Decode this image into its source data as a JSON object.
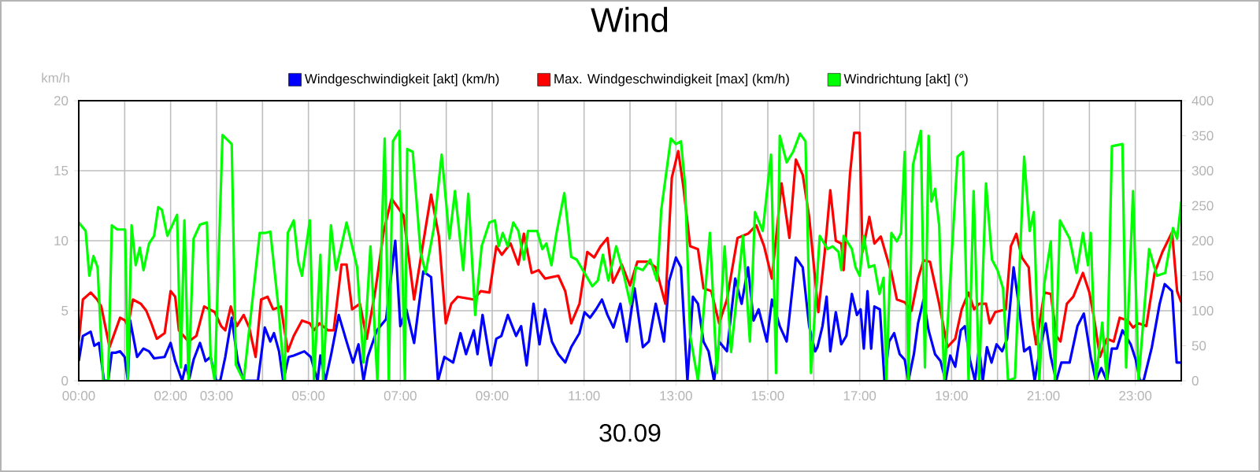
{
  "chart_data": {
    "type": "line",
    "title": "Wind",
    "xlabel": "30.09",
    "ylabel": "km/h",
    "xlim": [
      0,
      24
    ],
    "ylim": [
      0,
      20
    ],
    "y2lim": [
      0,
      400
    ],
    "xticks": [
      {
        "value": 0,
        "label": "00:00"
      },
      {
        "value": 1,
        "label": null
      },
      {
        "value": 2,
        "label": "02:00"
      },
      {
        "value": 3,
        "label": "03:00"
      },
      {
        "value": 4,
        "label": null
      },
      {
        "value": 5,
        "label": "05:00"
      },
      {
        "value": 6,
        "label": null
      },
      {
        "value": 7,
        "label": "07:00"
      },
      {
        "value": 8,
        "label": null
      },
      {
        "value": 9,
        "label": "09:00"
      },
      {
        "value": 10,
        "label": null
      },
      {
        "value": 11,
        "label": "11:00"
      },
      {
        "value": 12,
        "label": null
      },
      {
        "value": 13,
        "label": "13:00"
      },
      {
        "value": 14,
        "label": null
      },
      {
        "value": 15,
        "label": "15:00"
      },
      {
        "value": 16,
        "label": null
      },
      {
        "value": 17,
        "label": "17:00"
      },
      {
        "value": 18,
        "label": null
      },
      {
        "value": 19,
        "label": "19:00"
      },
      {
        "value": 20,
        "label": null
      },
      {
        "value": 21,
        "label": "21:00"
      },
      {
        "value": 22,
        "label": null
      },
      {
        "value": 23,
        "label": "23:00"
      },
      {
        "value": 24,
        "label": null
      }
    ],
    "yticks": [
      0,
      5,
      10,
      15,
      20
    ],
    "y2ticks": [
      0,
      50,
      100,
      150,
      200,
      250,
      300,
      350,
      400
    ],
    "grid": true,
    "legend": "top",
    "series": [
      {
        "name": "Windgeschwindigkeit [akt] (km/h)",
        "color": "#0000ff",
        "x": [
          0,
          0.09,
          0.26,
          0.34,
          0.44,
          0.55,
          0.64,
          0.72,
          0.8,
          0.9,
          1.0,
          1.07,
          1.12,
          1.27,
          1.41,
          1.53,
          1.64,
          1.87,
          2.0,
          2.1,
          2.25,
          2.33,
          2.41,
          2.5,
          2.64,
          2.76,
          2.87,
          2.99,
          3.08,
          3.19,
          3.33,
          3.46,
          3.59,
          3.9,
          4.05,
          4.17,
          4.25,
          4.36,
          4.45,
          4.57,
          4.68,
          4.91,
          5.05,
          5.2,
          5.26,
          5.37,
          5.49,
          5.66,
          5.83,
          5.97,
          6.09,
          6.2,
          6.29,
          6.49,
          6.69,
          6.89,
          7.0,
          7.13,
          7.3,
          7.5,
          7.67,
          7.82,
          7.96,
          8.15,
          8.31,
          8.43,
          8.6,
          8.68,
          8.79,
          8.97,
          9.09,
          9.2,
          9.34,
          9.52,
          9.63,
          9.75,
          9.9,
          10.03,
          10.15,
          10.3,
          10.44,
          10.59,
          10.72,
          10.9,
          11.01,
          11.13,
          11.26,
          11.39,
          11.51,
          11.64,
          11.79,
          11.93,
          12.1,
          12.28,
          12.41,
          12.56,
          12.74,
          12.85,
          13.0,
          13.11,
          13.25,
          13.37,
          13.48,
          13.6,
          13.71,
          13.83,
          13.94,
          14.11,
          14.29,
          14.43,
          14.57,
          14.69,
          14.8,
          14.98,
          15.09,
          15.26,
          15.41,
          15.61,
          15.76,
          15.9,
          16.03,
          16.08,
          16.19,
          16.28,
          16.36,
          16.48,
          16.6,
          16.71,
          16.83,
          16.94,
          17.02,
          17.09,
          17.17,
          17.25,
          17.32,
          17.44,
          17.54,
          17.64,
          17.75,
          17.87,
          17.98,
          18.06,
          18.18,
          18.27,
          18.39,
          18.5,
          18.64,
          18.76,
          18.87,
          18.97,
          19.08,
          19.2,
          19.29,
          19.4,
          19.51,
          19.6,
          19.68,
          19.77,
          19.87,
          19.98,
          20.1,
          20.21,
          20.35,
          20.46,
          20.58,
          20.7,
          20.81,
          20.93,
          21.05,
          21.16,
          21.28,
          21.39,
          21.57,
          21.74,
          21.88,
          22.03,
          22.14,
          22.26,
          22.38,
          22.49,
          22.6,
          22.72,
          22.9,
          23.01,
          23.1,
          23.18,
          23.36,
          23.53,
          23.64,
          23.8,
          23.9,
          24.0
        ],
        "values": [
          1.4,
          3.2,
          3.5,
          2.5,
          2.7,
          0,
          0,
          2.0,
          2.0,
          2.1,
          1.7,
          0,
          4.3,
          1.7,
          2.3,
          2.1,
          1.6,
          1.7,
          2.7,
          1.4,
          0,
          1.1,
          0.2,
          1.5,
          2.7,
          1.4,
          1.7,
          0,
          0,
          1.7,
          4.5,
          1.4,
          0,
          0,
          3.8,
          2.8,
          3.4,
          2.1,
          0,
          1.7,
          1.8,
          2.1,
          1.7,
          0,
          1.8,
          0,
          1.8,
          4.7,
          2.8,
          1.3,
          2.6,
          0,
          1.7,
          3.6,
          4.4,
          10.0,
          3.9,
          5.1,
          2.7,
          7.8,
          7.4,
          0,
          1.7,
          1.3,
          3.4,
          1.9,
          3.6,
          1.9,
          4.7,
          1.1,
          3.0,
          3.2,
          4.7,
          3.2,
          3.9,
          1.1,
          5.5,
          2.6,
          5.1,
          2.8,
          1.9,
          1.3,
          2.4,
          3.4,
          4.9,
          4.5,
          5.1,
          5.8,
          4.7,
          3.8,
          5.5,
          2.8,
          6.6,
          2.4,
          2.8,
          5.5,
          2.8,
          7.1,
          8.8,
          8.1,
          0,
          6.0,
          5.5,
          2.8,
          2.1,
          0,
          2.8,
          2.1,
          7.3,
          5.5,
          8.1,
          4.3,
          5.1,
          2.8,
          5.8,
          3.9,
          2.8,
          8.8,
          8.1,
          3.9,
          2.1,
          2.4,
          3.9,
          6.0,
          2.1,
          4.9,
          2.6,
          3.2,
          6.2,
          4.7,
          5.1,
          2.3,
          6.4,
          2.3,
          5.3,
          5.1,
          0,
          2.8,
          3.4,
          1.9,
          1.5,
          0,
          1.9,
          4.1,
          5.8,
          3.6,
          1.9,
          1.4,
          0,
          1.8,
          1.0,
          3.6,
          3.9,
          1.5,
          0,
          2.4,
          0,
          2.4,
          1.3,
          2.6,
          2.1,
          3.0,
          8.1,
          5.5,
          2.1,
          2.4,
          0,
          2.4,
          4.1,
          1.7,
          0,
          1.3,
          1.3,
          3.9,
          4.8,
          1.7,
          0,
          0.9,
          0,
          2.3,
          2.3,
          3.6,
          2.6,
          1.5,
          0,
          0,
          2.4,
          5.5,
          6.9,
          6.4,
          1.3,
          1.3
        ]
      },
      {
        "name": "Max. Windgeschwindigkeit [max] (km/h)",
        "color": "#ff0000",
        "x": [
          0,
          0.09,
          0.26,
          0.4,
          0.49,
          0.67,
          0.9,
          1.01,
          1.07,
          1.18,
          1.35,
          1.47,
          1.58,
          1.7,
          1.87,
          2.0,
          2.1,
          2.18,
          2.39,
          2.56,
          2.73,
          2.96,
          3.1,
          3.19,
          3.31,
          3.44,
          3.59,
          3.71,
          3.85,
          3.97,
          4.11,
          4.23,
          4.4,
          4.55,
          4.68,
          4.86,
          5.03,
          5.12,
          5.24,
          5.43,
          5.55,
          5.72,
          5.83,
          5.95,
          6.12,
          6.27,
          6.46,
          6.64,
          6.81,
          7.07,
          7.3,
          7.55,
          7.67,
          7.84,
          7.99,
          8.11,
          8.25,
          8.6,
          8.75,
          8.94,
          9.09,
          9.21,
          9.4,
          9.57,
          9.69,
          9.86,
          10.01,
          10.15,
          10.44,
          10.59,
          10.72,
          10.9,
          11.07,
          11.22,
          11.36,
          11.51,
          11.63,
          11.82,
          12.0,
          12.16,
          12.39,
          12.56,
          12.77,
          12.91,
          13.05,
          13.16,
          13.31,
          13.48,
          13.6,
          13.77,
          13.94,
          14.11,
          14.34,
          14.57,
          14.75,
          14.92,
          15.09,
          15.3,
          15.47,
          15.61,
          15.76,
          15.9,
          16.1,
          16.24,
          16.36,
          16.48,
          16.6,
          16.65,
          16.79,
          16.88,
          17.0,
          17.06,
          17.21,
          17.32,
          17.46,
          17.69,
          17.81,
          17.98,
          18.13,
          18.27,
          18.39,
          18.53,
          18.73,
          18.91,
          19.08,
          19.22,
          19.37,
          19.49,
          19.6,
          19.75,
          19.83,
          19.95,
          20.18,
          20.29,
          20.41,
          20.53,
          20.68,
          20.76,
          20.84,
          21.02,
          21.16,
          21.28,
          21.37,
          21.51,
          21.65,
          21.86,
          22.0,
          22.09,
          22.23,
          22.38,
          22.53,
          22.66,
          22.84,
          22.95,
          23.07,
          23.24,
          23.42,
          23.59,
          23.8,
          23.91,
          24.0
        ],
        "values": [
          2.8,
          5.8,
          6.3,
          5.8,
          5.3,
          2.4,
          4.5,
          4.3,
          3.9,
          5.8,
          5.5,
          5.0,
          4.1,
          3.0,
          3.4,
          6.4,
          6.0,
          3.6,
          2.8,
          3.2,
          5.3,
          4.9,
          3.9,
          3.6,
          5.3,
          3.9,
          4.7,
          3.8,
          1.7,
          5.8,
          6.0,
          5.1,
          5.3,
          2.1,
          3.2,
          4.3,
          4.1,
          3.6,
          4.1,
          3.6,
          3.6,
          8.3,
          8.3,
          5.1,
          5.5,
          3.0,
          6.5,
          10.7,
          13.0,
          11.8,
          5.8,
          10.9,
          13.3,
          10.3,
          4.1,
          5.5,
          6.0,
          5.8,
          6.4,
          6.3,
          9.6,
          9.0,
          9.8,
          8.3,
          10.5,
          7.7,
          7.9,
          7.3,
          7.5,
          6.4,
          4.1,
          5.5,
          9.2,
          8.8,
          9.6,
          10.2,
          7.0,
          8.3,
          6.8,
          8.5,
          8.5,
          8.1,
          5.5,
          14.5,
          16.4,
          13.9,
          9.6,
          9.4,
          6.6,
          6.4,
          4.1,
          5.8,
          10.2,
          10.5,
          11.1,
          9.6,
          7.3,
          14.1,
          10.2,
          15.8,
          14.7,
          11.7,
          4.9,
          9.2,
          13.6,
          10.0,
          9.8,
          7.9,
          14.8,
          17.7,
          17.7,
          9.2,
          11.7,
          9.8,
          10.3,
          7.7,
          5.8,
          5.6,
          5.0,
          7.3,
          8.6,
          8.5,
          5.5,
          2.4,
          3.0,
          5.1,
          6.3,
          5.1,
          5.5,
          5.5,
          4.1,
          4.9,
          5.1,
          9.6,
          10.5,
          8.8,
          8.1,
          4.3,
          2.6,
          6.3,
          6.2,
          3.2,
          2.8,
          5.5,
          6.0,
          7.7,
          6.3,
          4.7,
          1.7,
          3.0,
          2.8,
          4.5,
          4.3,
          3.8,
          4.1,
          3.9,
          7.7,
          9.2,
          10.6,
          6.4,
          5.6
        ]
      },
      {
        "name": "Windrichtung [akt] (°)",
        "color": "#00ff00",
        "axis": "y2",
        "x": [
          0,
          0.15,
          0.23,
          0.32,
          0.41,
          0.53,
          0.64,
          0.72,
          0.84,
          1.01,
          1.07,
          1.15,
          1.24,
          1.33,
          1.41,
          1.53,
          1.64,
          1.73,
          1.81,
          1.93,
          2.14,
          2.22,
          2.3,
          2.39,
          2.5,
          2.64,
          2.79,
          2.87,
          2.96,
          3.13,
          3.33,
          3.42,
          3.59,
          3.94,
          4.05,
          4.17,
          4.34,
          4.48,
          4.55,
          4.68,
          4.78,
          4.86,
          5.03,
          5.12,
          5.26,
          5.32,
          5.49,
          5.6,
          5.83,
          6.06,
          6.2,
          6.35,
          6.5,
          6.66,
          6.75,
          6.84,
          6.98,
          7.1,
          7.15,
          7.27,
          7.44,
          7.55,
          7.73,
          7.9,
          8.07,
          8.19,
          8.37,
          8.48,
          8.63,
          8.77,
          8.94,
          9.06,
          9.14,
          9.23,
          9.34,
          9.46,
          9.57,
          9.69,
          9.78,
          9.98,
          10.09,
          10.18,
          10.29,
          10.4,
          10.57,
          10.72,
          10.84,
          11.01,
          11.18,
          11.3,
          11.41,
          11.53,
          11.7,
          11.87,
          12.01,
          12.13,
          12.28,
          12.44,
          12.59,
          12.68,
          12.89,
          13.0,
          13.11,
          13.2,
          13.31,
          13.48,
          13.74,
          13.89,
          14.06,
          14.2,
          14.46,
          14.61,
          14.72,
          14.89,
          15.07,
          15.18,
          15.26,
          15.41,
          15.55,
          15.7,
          15.82,
          15.94,
          16.13,
          16.3,
          16.41,
          16.54,
          16.6,
          16.65,
          16.83,
          16.91,
          17.0,
          17.09,
          17.2,
          17.32,
          17.43,
          17.52,
          17.58,
          17.69,
          17.81,
          17.9,
          17.98,
          18.06,
          18.16,
          18.33,
          18.42,
          18.5,
          18.56,
          18.64,
          18.73,
          18.84,
          19.13,
          19.25,
          19.37,
          19.48,
          19.6,
          19.75,
          19.88,
          20.0,
          20.12,
          20.23,
          20.38,
          20.58,
          20.7,
          20.79,
          20.91,
          21.02,
          21.16,
          21.25,
          21.36,
          21.57,
          21.72,
          21.86,
          21.97,
          22.03,
          22.14,
          22.28,
          22.38,
          22.49,
          22.72,
          22.8,
          22.95,
          23.07,
          23.3,
          23.47,
          23.65,
          23.82,
          23.91,
          24.0
        ],
        "values": [
          226,
          214,
          150,
          178,
          162,
          0,
          0,
          222,
          216,
          216,
          0,
          222,
          165,
          190,
          158,
          196,
          207,
          248,
          244,
          207,
          237,
          19,
          229,
          0,
          203,
          223,
          226,
          34,
          0,
          351,
          338,
          23,
          0,
          211,
          211,
          213,
          109,
          0,
          211,
          229,
          169,
          150,
          229,
          0,
          180,
          0,
          222,
          158,
          226,
          162,
          26,
          192,
          0,
          346,
          0,
          342,
          357,
          0,
          331,
          327,
          184,
          154,
          218,
          323,
          203,
          271,
          158,
          267,
          94,
          192,
          226,
          229,
          192,
          211,
          192,
          226,
          214,
          173,
          214,
          214,
          188,
          196,
          165,
          211,
          268,
          177,
          173,
          154,
          135,
          143,
          180,
          143,
          192,
          150,
          109,
          162,
          158,
          173,
          143,
          244,
          346,
          338,
          342,
          278,
          64,
          0,
          211,
          11,
          192,
          41,
          207,
          56,
          241,
          214,
          323,
          11,
          350,
          312,
          327,
          353,
          342,
          11,
          207,
          188,
          192,
          184,
          158,
          207,
          188,
          162,
          150,
          207,
          162,
          165,
          124,
          147,
          0,
          211,
          199,
          211,
          327,
          0,
          308,
          357,
          19,
          350,
          256,
          274,
          222,
          0,
          320,
          327,
          0,
          271,
          0,
          282,
          173,
          158,
          132,
          0,
          4,
          320,
          214,
          241,
          0,
          139,
          199,
          0,
          229,
          203,
          154,
          211,
          165,
          211,
          0,
          83,
          0,
          335,
          338,
          19,
          271,
          0,
          188,
          150,
          154,
          218,
          203,
          256
        ]
      }
    ]
  }
}
